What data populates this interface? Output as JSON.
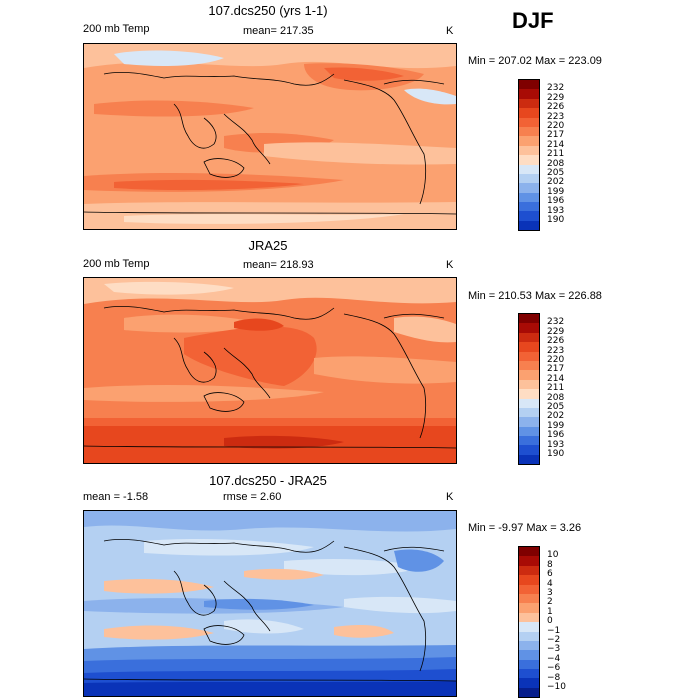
{
  "season": "DJF",
  "panels": [
    {
      "title": "107.dcs250 (yrs 1-1)",
      "left_label": "200 mb Temp",
      "stat_label": "mean= 217.35",
      "units": "K",
      "minmax": "Min = 207.02 Max = 223.09",
      "colorbar": {
        "labels": [
          "232",
          "229",
          "226",
          "223",
          "220",
          "217",
          "214",
          "211",
          "208",
          "205",
          "202",
          "199",
          "196",
          "193",
          "190"
        ],
        "colors": [
          "#7f0000",
          "#a80b05",
          "#cc2b10",
          "#e7471e",
          "#f26235",
          "#f7804f",
          "#fba170",
          "#fdc19b",
          "#feddc4",
          "#d8e7f7",
          "#b4d0f2",
          "#8cb2ec",
          "#6092e5",
          "#3a6fdc",
          "#1e4fd0",
          "#0a33b8"
        ]
      }
    },
    {
      "title": "JRA25",
      "left_label": "200 mb Temp",
      "stat_label": "mean= 218.93",
      "units": "K",
      "minmax": "Min = 210.53 Max = 226.88",
      "colorbar": {
        "labels": [
          "232",
          "229",
          "226",
          "223",
          "220",
          "217",
          "214",
          "211",
          "208",
          "205",
          "202",
          "199",
          "196",
          "193",
          "190"
        ],
        "colors": [
          "#7f0000",
          "#a80b05",
          "#cc2b10",
          "#e7471e",
          "#f26235",
          "#f7804f",
          "#fba170",
          "#fdc19b",
          "#feddc4",
          "#d8e7f7",
          "#b4d0f2",
          "#8cb2ec",
          "#6092e5",
          "#3a6fdc",
          "#1e4fd0",
          "#0a33b8"
        ]
      }
    },
    {
      "title": "107.dcs250 - JRA25",
      "left_label": "mean =   -1.58",
      "stat_label": "rmse =    2.60",
      "units": "K",
      "minmax": "Min =  -9.97 Max =   3.26",
      "colorbar": {
        "labels": [
          "10",
          "8",
          "6",
          "4",
          "3",
          "2",
          "1",
          "0",
          "−1",
          "−2",
          "−3",
          "−4",
          "−6",
          "−8",
          "−10"
        ],
        "colors": [
          "#7f0000",
          "#a80b05",
          "#cc2b10",
          "#e7471e",
          "#f26235",
          "#f7804f",
          "#fba170",
          "#fdc19b",
          "#d8e7f7",
          "#b4d0f2",
          "#8cb2ec",
          "#6092e5",
          "#3a6fdc",
          "#1e4fd0",
          "#0a33b8",
          "#061e8c"
        ]
      }
    }
  ]
}
